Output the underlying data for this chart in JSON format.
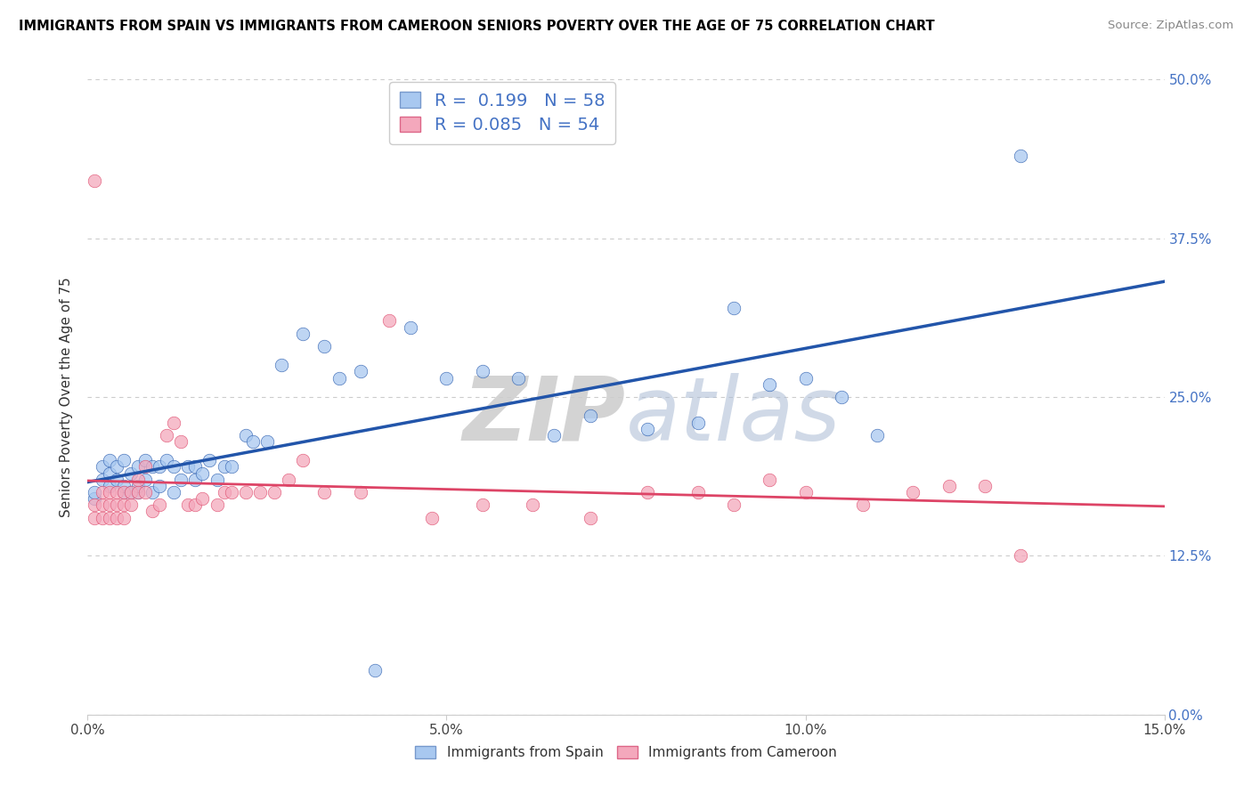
{
  "title": "IMMIGRANTS FROM SPAIN VS IMMIGRANTS FROM CAMEROON SENIORS POVERTY OVER THE AGE OF 75 CORRELATION CHART",
  "source": "Source: ZipAtlas.com",
  "ylabel": "Seniors Poverty Over the Age of 75",
  "xlim": [
    0.0,
    0.15
  ],
  "ylim": [
    0.0,
    0.5
  ],
  "x_tick_vals": [
    0.0,
    0.05,
    0.1,
    0.15
  ],
  "x_tick_labels": [
    "0.0%",
    "5.0%",
    "10.0%",
    "15.0%"
  ],
  "y_tick_vals": [
    0.0,
    0.125,
    0.25,
    0.375,
    0.5
  ],
  "y_tick_labels": [
    "0.0%",
    "12.5%",
    "25.0%",
    "37.5%",
    "50.0%"
  ],
  "R_spain": 0.199,
  "N_spain": 58,
  "R_cameroon": 0.085,
  "N_cameroon": 54,
  "color_spain": "#A8C8F0",
  "color_cameroon": "#F4A8BC",
  "color_spain_line": "#2255AA",
  "color_cameroon_line": "#DD4466",
  "legend_color_r": "#4472C4",
  "legend_color_n": "#4472C4",
  "watermark_zip": "ZIP",
  "watermark_atlas": "atlas",
  "background_color": "#FFFFFF",
  "grid_color": "#CCCCCC",
  "spain_x": [
    0.001,
    0.001,
    0.002,
    0.002,
    0.003,
    0.003,
    0.003,
    0.004,
    0.004,
    0.005,
    0.005,
    0.005,
    0.006,
    0.006,
    0.007,
    0.007,
    0.007,
    0.008,
    0.008,
    0.009,
    0.009,
    0.01,
    0.01,
    0.011,
    0.012,
    0.012,
    0.013,
    0.014,
    0.015,
    0.015,
    0.016,
    0.017,
    0.018,
    0.019,
    0.02,
    0.022,
    0.023,
    0.025,
    0.027,
    0.03,
    0.033,
    0.035,
    0.038,
    0.04,
    0.045,
    0.05,
    0.055,
    0.06,
    0.065,
    0.07,
    0.078,
    0.085,
    0.09,
    0.095,
    0.1,
    0.105,
    0.11,
    0.13
  ],
  "spain_y": [
    0.17,
    0.175,
    0.185,
    0.195,
    0.18,
    0.19,
    0.2,
    0.185,
    0.195,
    0.175,
    0.18,
    0.2,
    0.175,
    0.19,
    0.175,
    0.18,
    0.195,
    0.185,
    0.2,
    0.175,
    0.195,
    0.18,
    0.195,
    0.2,
    0.175,
    0.195,
    0.185,
    0.195,
    0.185,
    0.195,
    0.19,
    0.2,
    0.185,
    0.195,
    0.195,
    0.22,
    0.215,
    0.215,
    0.275,
    0.3,
    0.29,
    0.265,
    0.27,
    0.035,
    0.305,
    0.265,
    0.27,
    0.265,
    0.22,
    0.235,
    0.225,
    0.23,
    0.32,
    0.26,
    0.265,
    0.25,
    0.22,
    0.44
  ],
  "cameroon_x": [
    0.001,
    0.001,
    0.001,
    0.002,
    0.002,
    0.002,
    0.003,
    0.003,
    0.003,
    0.004,
    0.004,
    0.004,
    0.005,
    0.005,
    0.005,
    0.006,
    0.006,
    0.007,
    0.007,
    0.008,
    0.008,
    0.009,
    0.01,
    0.011,
    0.012,
    0.013,
    0.014,
    0.015,
    0.016,
    0.018,
    0.019,
    0.02,
    0.022,
    0.024,
    0.026,
    0.028,
    0.03,
    0.033,
    0.038,
    0.042,
    0.048,
    0.055,
    0.062,
    0.07,
    0.078,
    0.085,
    0.09,
    0.095,
    0.1,
    0.108,
    0.115,
    0.12,
    0.125,
    0.13
  ],
  "cameroon_y": [
    0.155,
    0.165,
    0.42,
    0.155,
    0.165,
    0.175,
    0.155,
    0.165,
    0.175,
    0.155,
    0.165,
    0.175,
    0.155,
    0.165,
    0.175,
    0.165,
    0.175,
    0.175,
    0.185,
    0.175,
    0.195,
    0.16,
    0.165,
    0.22,
    0.23,
    0.215,
    0.165,
    0.165,
    0.17,
    0.165,
    0.175,
    0.175,
    0.175,
    0.175,
    0.175,
    0.185,
    0.2,
    0.175,
    0.175,
    0.31,
    0.155,
    0.165,
    0.165,
    0.155,
    0.175,
    0.175,
    0.165,
    0.185,
    0.175,
    0.165,
    0.175,
    0.18,
    0.18,
    0.125
  ]
}
